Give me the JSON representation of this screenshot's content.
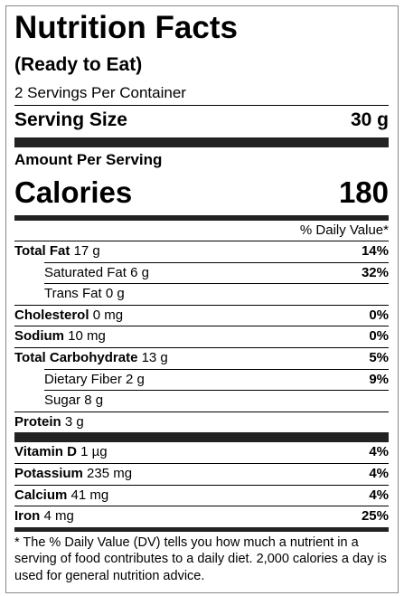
{
  "title": "Nutrition Facts",
  "subtitle": "(Ready to Eat)",
  "servings": "2 Servings Per Container",
  "serving_size": {
    "label": "Serving Size",
    "value": "30 g"
  },
  "amount_per_serving": "Amount Per Serving",
  "calories": {
    "label": "Calories",
    "value": "180"
  },
  "dv_header": "% Daily Value*",
  "nutrients": [
    {
      "name": "Total Fat",
      "amount": "17 g",
      "dv": "14%",
      "bold": true
    },
    {
      "name": "Saturated Fat",
      "amount": "6 g",
      "dv": "32%",
      "indent": true
    },
    {
      "name": "Trans Fat",
      "amount": "0 g",
      "indent": true
    },
    {
      "name": "Cholesterol",
      "amount": "0 mg",
      "dv": "0%",
      "bold": true
    },
    {
      "name": "Sodium",
      "amount": "10 mg",
      "dv": "0%",
      "bold": true
    },
    {
      "name": "Total Carbohydrate",
      "amount": "13 g",
      "dv": "5%",
      "bold": true
    },
    {
      "name": "Dietary Fiber",
      "amount": "2 g",
      "dv": "9%",
      "indent": true
    },
    {
      "name": "Sugar",
      "amount": "8 g",
      "indent": true
    },
    {
      "name": "Protein",
      "amount": "3 g",
      "bold": true
    }
  ],
  "vitamins": [
    {
      "name": "Vitamin D",
      "amount": "1 µg",
      "dv": "4%",
      "bold": true
    },
    {
      "name": "Potassium",
      "amount": "235 mg",
      "dv": "4%",
      "bold": true
    },
    {
      "name": "Calcium",
      "amount": "41 mg",
      "dv": "4%",
      "bold": true
    },
    {
      "name": "Iron",
      "amount": "4 mg",
      "dv": "25%",
      "bold": true
    }
  ],
  "footnote": "* The % Daily Value (DV) tells you how much a nutrient in a serving of food contributes to a daily diet. 2,000 calories a day is used for general nutrition advice."
}
